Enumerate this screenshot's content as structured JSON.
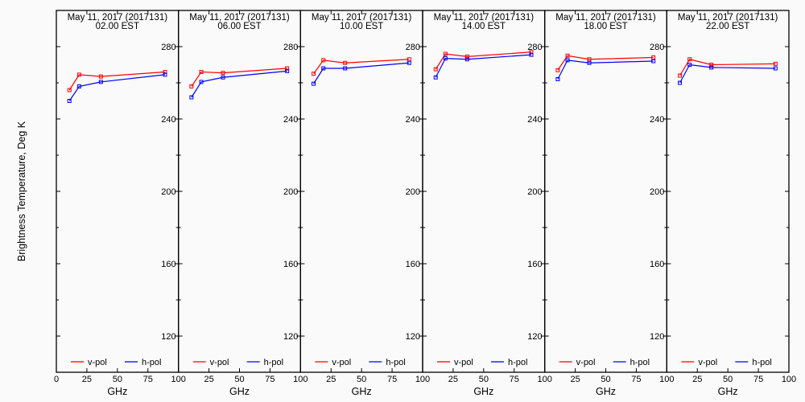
{
  "chart_data": {
    "type": "line",
    "ylabel": "Brightness Temperature, Deg K",
    "xlabel": "GHz",
    "xlim": [
      0,
      100
    ],
    "ylim": [
      100,
      300
    ],
    "xticks": [
      0,
      25,
      50,
      75,
      100
    ],
    "yticks": [
      120,
      160,
      200,
      240,
      280
    ],
    "legend_placement": "bottom",
    "colors": {
      "v-pol": "#ff0000",
      "h-pol": "#0000ff"
    },
    "x": [
      10.7,
      18.7,
      36.5,
      89.0
    ],
    "panels": [
      {
        "title": "May 11, 2017 (2017131)",
        "subtitle": "02.00 EST",
        "series": [
          {
            "name": "v-pol",
            "values": [
              256,
              264.5,
              263.5,
              266
            ]
          },
          {
            "name": "h-pol",
            "values": [
              250,
              258,
              260.5,
              264.5
            ]
          }
        ]
      },
      {
        "title": "May 11, 2017 (2017131)",
        "subtitle": "06.00 EST",
        "series": [
          {
            "name": "v-pol",
            "values": [
              258,
              266,
              265.5,
              268
            ]
          },
          {
            "name": "h-pol",
            "values": [
              252,
              260.5,
              263,
              266.5
            ]
          }
        ]
      },
      {
        "title": "May 11, 2017 (2017131)",
        "subtitle": "10.00 EST",
        "series": [
          {
            "name": "v-pol",
            "values": [
              265,
              272.5,
              271,
              273
            ]
          },
          {
            "name": "h-pol",
            "values": [
              259.5,
              268,
              268,
              271
            ]
          }
        ]
      },
      {
        "title": "May 11, 2017 (2017131)",
        "subtitle": "14.00 EST",
        "series": [
          {
            "name": "v-pol",
            "values": [
              267.5,
              276,
              274.5,
              277
            ]
          },
          {
            "name": "h-pol",
            "values": [
              263,
              273.5,
              273,
              275.5
            ]
          }
        ]
      },
      {
        "title": "May 11, 2017 (2017131)",
        "subtitle": "18.00 EST",
        "series": [
          {
            "name": "v-pol",
            "values": [
              267,
              275,
              273,
              274
            ]
          },
          {
            "name": "h-pol",
            "values": [
              262,
              272.5,
              271,
              272
            ]
          }
        ]
      },
      {
        "title": "May 11, 2017 (2017131)",
        "subtitle": "22.00 EST",
        "series": [
          {
            "name": "v-pol",
            "values": [
              264,
              273,
              270,
              270.5
            ]
          },
          {
            "name": "h-pol",
            "values": [
              260,
              270,
              268.5,
              268
            ]
          }
        ]
      }
    ]
  }
}
